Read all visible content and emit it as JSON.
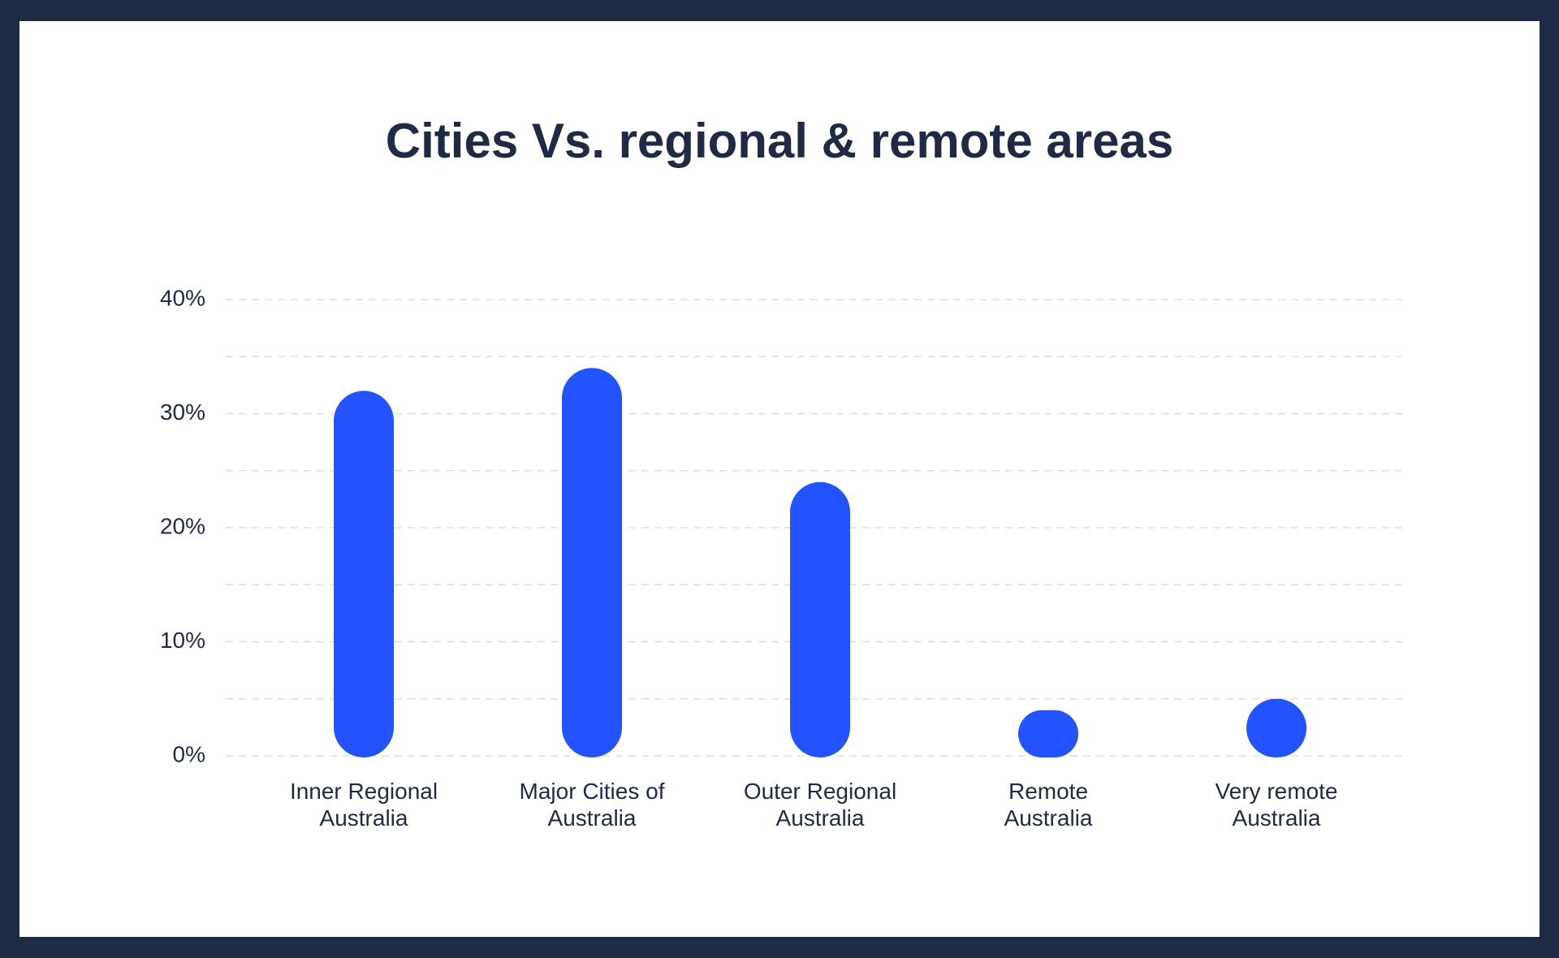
{
  "chart_data": {
    "type": "bar",
    "title": "Cities Vs. regional & remote areas",
    "categories": [
      "Inner Regional Australia",
      "Major Cities of Australia",
      "Outer Regional Australia",
      "Remote Australia",
      "Very remote Australia"
    ],
    "values": [
      32,
      34,
      24,
      4,
      5
    ],
    "color": "#2353ff",
    "ylim": [
      0,
      40
    ],
    "yticks": [
      {
        "value": 0,
        "label": "0%"
      },
      {
        "value": 10,
        "label": "10%"
      },
      {
        "value": 20,
        "label": "20%"
      },
      {
        "value": 30,
        "label": "30%"
      },
      {
        "value": 40,
        "label": "40%"
      }
    ],
    "minor_yticks": [
      5,
      15,
      25,
      35
    ],
    "grid": true
  }
}
